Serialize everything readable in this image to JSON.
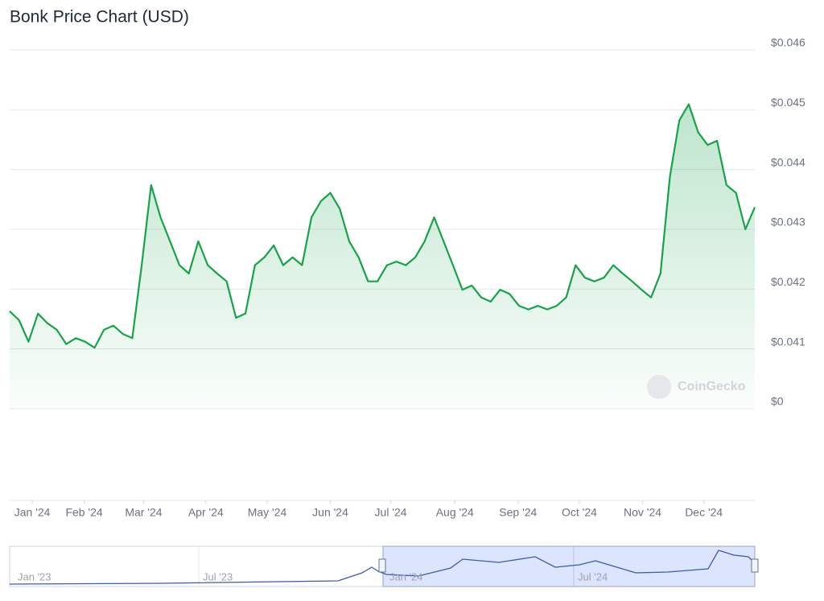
{
  "chart_data": {
    "type": "line",
    "title": "Bonk Price Chart (USD)",
    "series": [
      {
        "name": "Price",
        "color": "#16a34a",
        "values": [
          0.04163,
          0.04148,
          0.04112,
          0.04159,
          0.04143,
          0.04132,
          0.04108,
          0.04118,
          0.04112,
          0.04102,
          0.04132,
          0.04139,
          0.04125,
          0.04118,
          0.0424,
          0.04374,
          0.0432,
          0.0428,
          0.0424,
          0.04226,
          0.0428,
          0.0424,
          0.04226,
          0.04213,
          0.04152,
          0.04159,
          0.0424,
          0.04253,
          0.04273,
          0.0424,
          0.04253,
          0.0424,
          0.0432,
          0.04347,
          0.04361,
          0.04334,
          0.0428,
          0.04253,
          0.04213,
          0.04213,
          0.0424,
          0.04246,
          0.0424,
          0.04253,
          0.0428,
          0.0432,
          0.0428,
          0.0424,
          0.04199,
          0.04206,
          0.04186,
          0.04179,
          0.04199,
          0.04192,
          0.04172,
          0.04166,
          0.04172,
          0.04166,
          0.04172,
          0.04186,
          0.0424,
          0.04219,
          0.04213,
          0.04219,
          0.0424,
          0.04226,
          0.04213,
          0.04199,
          0.04186,
          0.04226,
          0.04388,
          0.04482,
          0.04509,
          0.04462,
          0.04441,
          0.04448,
          0.04374,
          0.04361,
          0.043,
          0.04337
        ]
      }
    ],
    "xlim": [
      0,
      79
    ],
    "xticks": [
      {
        "value": 2.4,
        "label": "Jan '24"
      },
      {
        "value": 7.9,
        "label": "Feb '24"
      },
      {
        "value": 14.2,
        "label": "Mar '24"
      },
      {
        "value": 20.8,
        "label": "Apr '24"
      },
      {
        "value": 27.3,
        "label": "May '24"
      },
      {
        "value": 34.0,
        "label": "Jun '24"
      },
      {
        "value": 40.4,
        "label": "Jul '24"
      },
      {
        "value": 47.2,
        "label": "Aug '24"
      },
      {
        "value": 53.9,
        "label": "Sep '24"
      },
      {
        "value": 60.4,
        "label": "Oct '24"
      },
      {
        "value": 67.1,
        "label": "Nov '24"
      },
      {
        "value": 73.6,
        "label": "Dec '24"
      }
    ],
    "ylim": [
      0.04,
      0.046
    ],
    "yticks": [
      {
        "value": 0.04,
        "label": "$0"
      },
      {
        "value": 0.041,
        "label": "$0.041"
      },
      {
        "value": 0.042,
        "label": "$0.042"
      },
      {
        "value": 0.043,
        "label": "$0.043"
      },
      {
        "value": 0.044,
        "label": "$0.044"
      },
      {
        "value": 0.045,
        "label": "$0.045"
      },
      {
        "value": 0.046,
        "label": "$0.046"
      }
    ],
    "grid": true,
    "watermark": "CoinGecko",
    "navigator_labels": [
      "Jan '23",
      "Jul '23",
      "Jan '24",
      "Jul '24"
    ]
  }
}
